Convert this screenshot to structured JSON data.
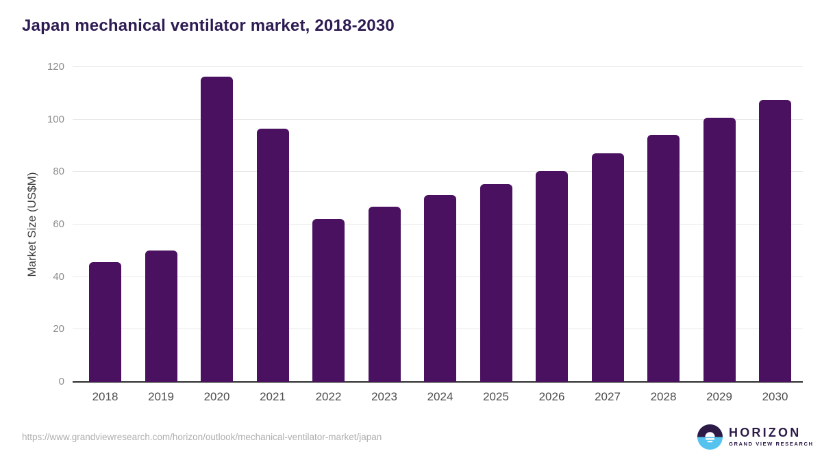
{
  "chart_data": {
    "type": "bar",
    "title": "Japan mechanical ventilator market, 2018-2030",
    "categories": [
      "2018",
      "2019",
      "2020",
      "2021",
      "2022",
      "2023",
      "2024",
      "2025",
      "2026",
      "2027",
      "2028",
      "2029",
      "2030"
    ],
    "values": [
      45.6,
      50.2,
      116.4,
      96.5,
      62.2,
      66.9,
      71.2,
      75.5,
      80.4,
      87.1,
      94.3,
      100.8,
      107.5
    ],
    "xlabel": "",
    "ylabel": "Market Size (US$M)",
    "ylim": [
      0,
      120
    ],
    "yticks": [
      0,
      20,
      40,
      60,
      80,
      100,
      120
    ],
    "grid": "horizontal-only",
    "legend_position": "none",
    "bar_color": "#4a1160"
  },
  "colors": {
    "title_text": "#2d1b52",
    "bar_fill": "#4a1160",
    "gridline": "#e7e7e7",
    "axis_line": "#2b2b2b",
    "y_tick_text": "#8c8c8c",
    "x_tick_text": "#4c4c4c",
    "source_text": "#aeaeae",
    "logo_purple": "#2d1a47",
    "logo_blue": "#56c3ef"
  },
  "footer": {
    "source_url": "https://www.grandviewresearch.com/horizon/outlook/mechanical-ventilator-market/japan",
    "logo": {
      "brand": "HORIZON",
      "subtitle": "GRAND VIEW RESEARCH"
    }
  }
}
